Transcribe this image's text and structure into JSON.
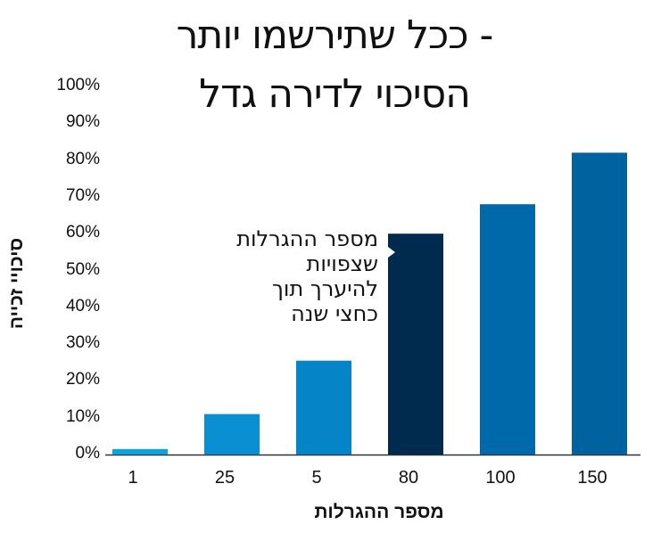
{
  "title_lines": [
    "ככל שתירשמו יותר -",
    "הסיכוי לדירה גדל"
  ],
  "annotation_lines": [
    "מספר ההגרלות",
    "שצפויות",
    "להיערך תוך",
    "כחצי שנה"
  ],
  "colors": {
    "bars": [
      "#0fa1dc",
      "#0a90d2",
      "#0584c8",
      "#002b4e",
      "#0069aa",
      "#00629f"
    ],
    "axis": "#333333",
    "text": "#111111"
  },
  "chart_data": {
    "type": "bar",
    "title": "ככל שתירשמו יותר - הסיכוי לדירה גדל",
    "xlabel": "מספר ההגרלות",
    "ylabel": "סיכויי זכייה",
    "categories": [
      "1",
      "25",
      "5",
      "80",
      "100",
      "150"
    ],
    "values": [
      1.5,
      11,
      25.5,
      60,
      68,
      82
    ],
    "ylim": [
      0,
      100
    ],
    "yticks": [
      "0%",
      "10%",
      "20%",
      "30%",
      "40%",
      "50%",
      "60%",
      "70%",
      "80%",
      "90%",
      "100%"
    ],
    "highlight_index": 3,
    "grid": false,
    "legend": "none"
  }
}
